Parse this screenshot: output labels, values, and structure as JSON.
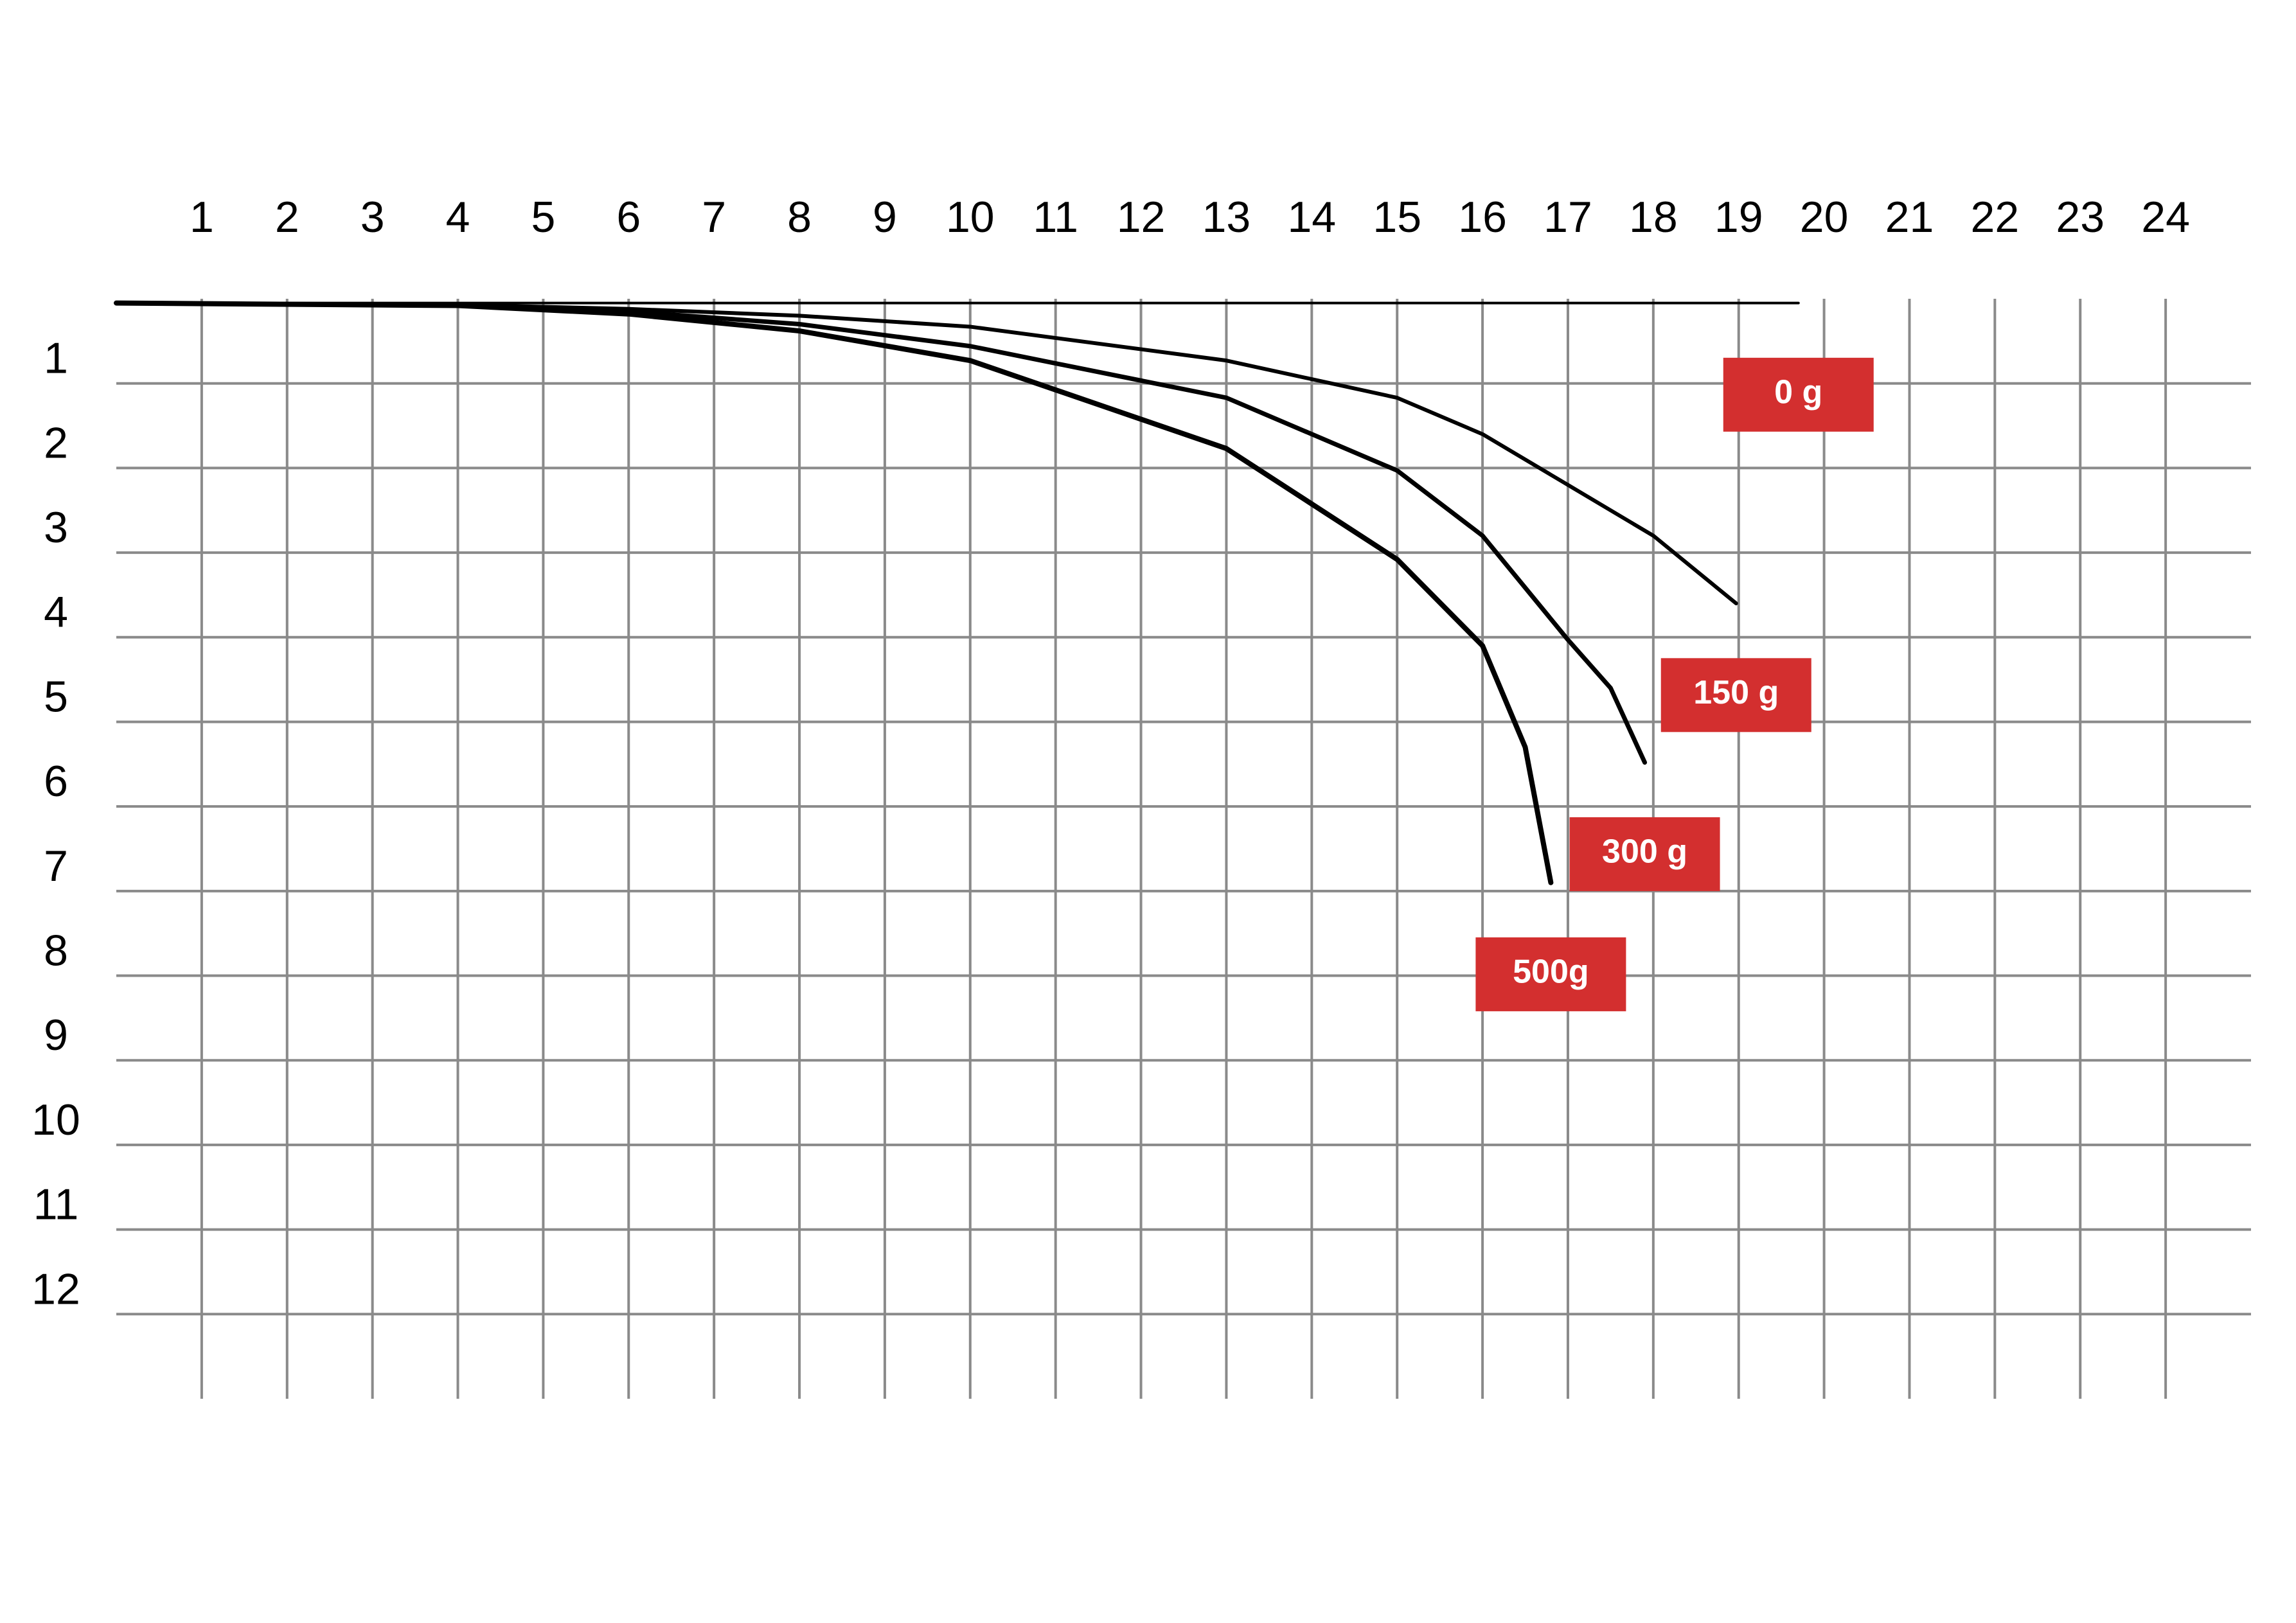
{
  "chart_data": {
    "type": "line",
    "xlim": [
      0,
      25
    ],
    "ylim": [
      0,
      13
    ],
    "xticks": [
      1,
      2,
      3,
      4,
      5,
      6,
      7,
      8,
      9,
      10,
      11,
      12,
      13,
      14,
      15,
      16,
      17,
      18,
      19,
      20,
      21,
      22,
      23,
      24
    ],
    "yticks": [
      1,
      2,
      3,
      4,
      5,
      6,
      7,
      8,
      9,
      10,
      11,
      12
    ],
    "y_inverted": true,
    "grid": true,
    "label_color": "#d32f2f",
    "series": [
      {
        "name": "0 g",
        "color": "#000000",
        "x": [
          0,
          5,
          10,
          15,
          19.7
        ],
        "values": [
          0.05,
          0.05,
          0.05,
          0.05,
          0.05
        ]
      },
      {
        "name": "150 g",
        "color": "#000000",
        "x": [
          0,
          4,
          6,
          8,
          10,
          13,
          15,
          16,
          17,
          18,
          18.97
        ],
        "values": [
          0.05,
          0.07,
          0.12,
          0.2,
          0.33,
          0.73,
          1.17,
          1.6,
          2.2,
          2.8,
          3.6
        ]
      },
      {
        "name": "300 g",
        "color": "#000000",
        "x": [
          0,
          4,
          6,
          8,
          10,
          13,
          15,
          16,
          17,
          17.5,
          17.9
        ],
        "values": [
          0.05,
          0.08,
          0.15,
          0.3,
          0.56,
          1.17,
          2.03,
          2.8,
          4.03,
          4.6,
          5.48
        ]
      },
      {
        "name": "500g",
        "color": "#000000",
        "x": [
          0,
          4,
          6,
          8,
          10,
          13,
          15,
          16,
          16.5,
          16.8
        ],
        "values": [
          0.05,
          0.08,
          0.18,
          0.38,
          0.73,
          1.77,
          3.08,
          4.1,
          5.3,
          6.9
        ]
      }
    ]
  }
}
